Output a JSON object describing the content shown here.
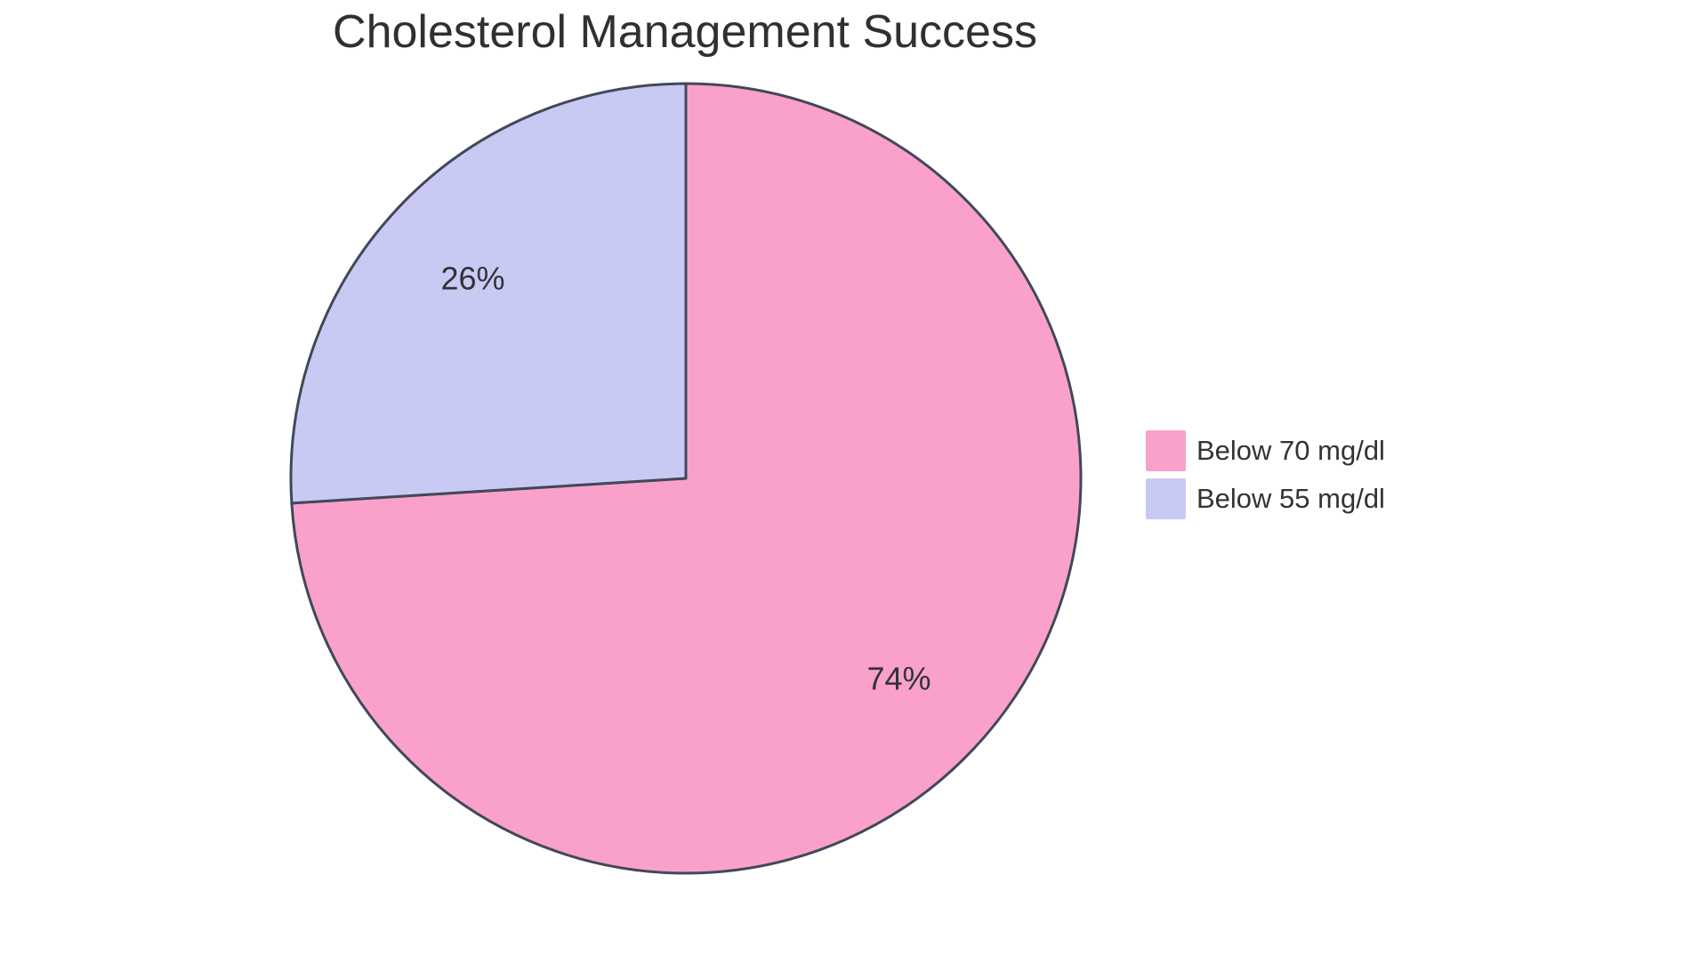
{
  "page": {
    "background_color": "#FFFFFF"
  },
  "chart_data": {
    "type": "pie",
    "title": "Cholesterol Management Success",
    "categories": [
      "Below 70 mg/dl",
      "Below 55 mg/dl"
    ],
    "values": [
      74,
      26
    ],
    "unit": "%",
    "slices": [
      {
        "label": "Below 70 mg/dl",
        "value": 74,
        "display": "74%",
        "color": "#F9A1CB"
      },
      {
        "label": "Below 55 mg/dl",
        "value": 26,
        "display": "26%",
        "color": "#C9CAF4"
      }
    ],
    "start_angle_deg": 0,
    "direction": "clockwise",
    "stroke_color": "#414859",
    "stroke_width": 3,
    "label_color": "#313335",
    "label_radius_ratio": 0.74,
    "legend_position": "right",
    "title_color": "#2F3033"
  }
}
